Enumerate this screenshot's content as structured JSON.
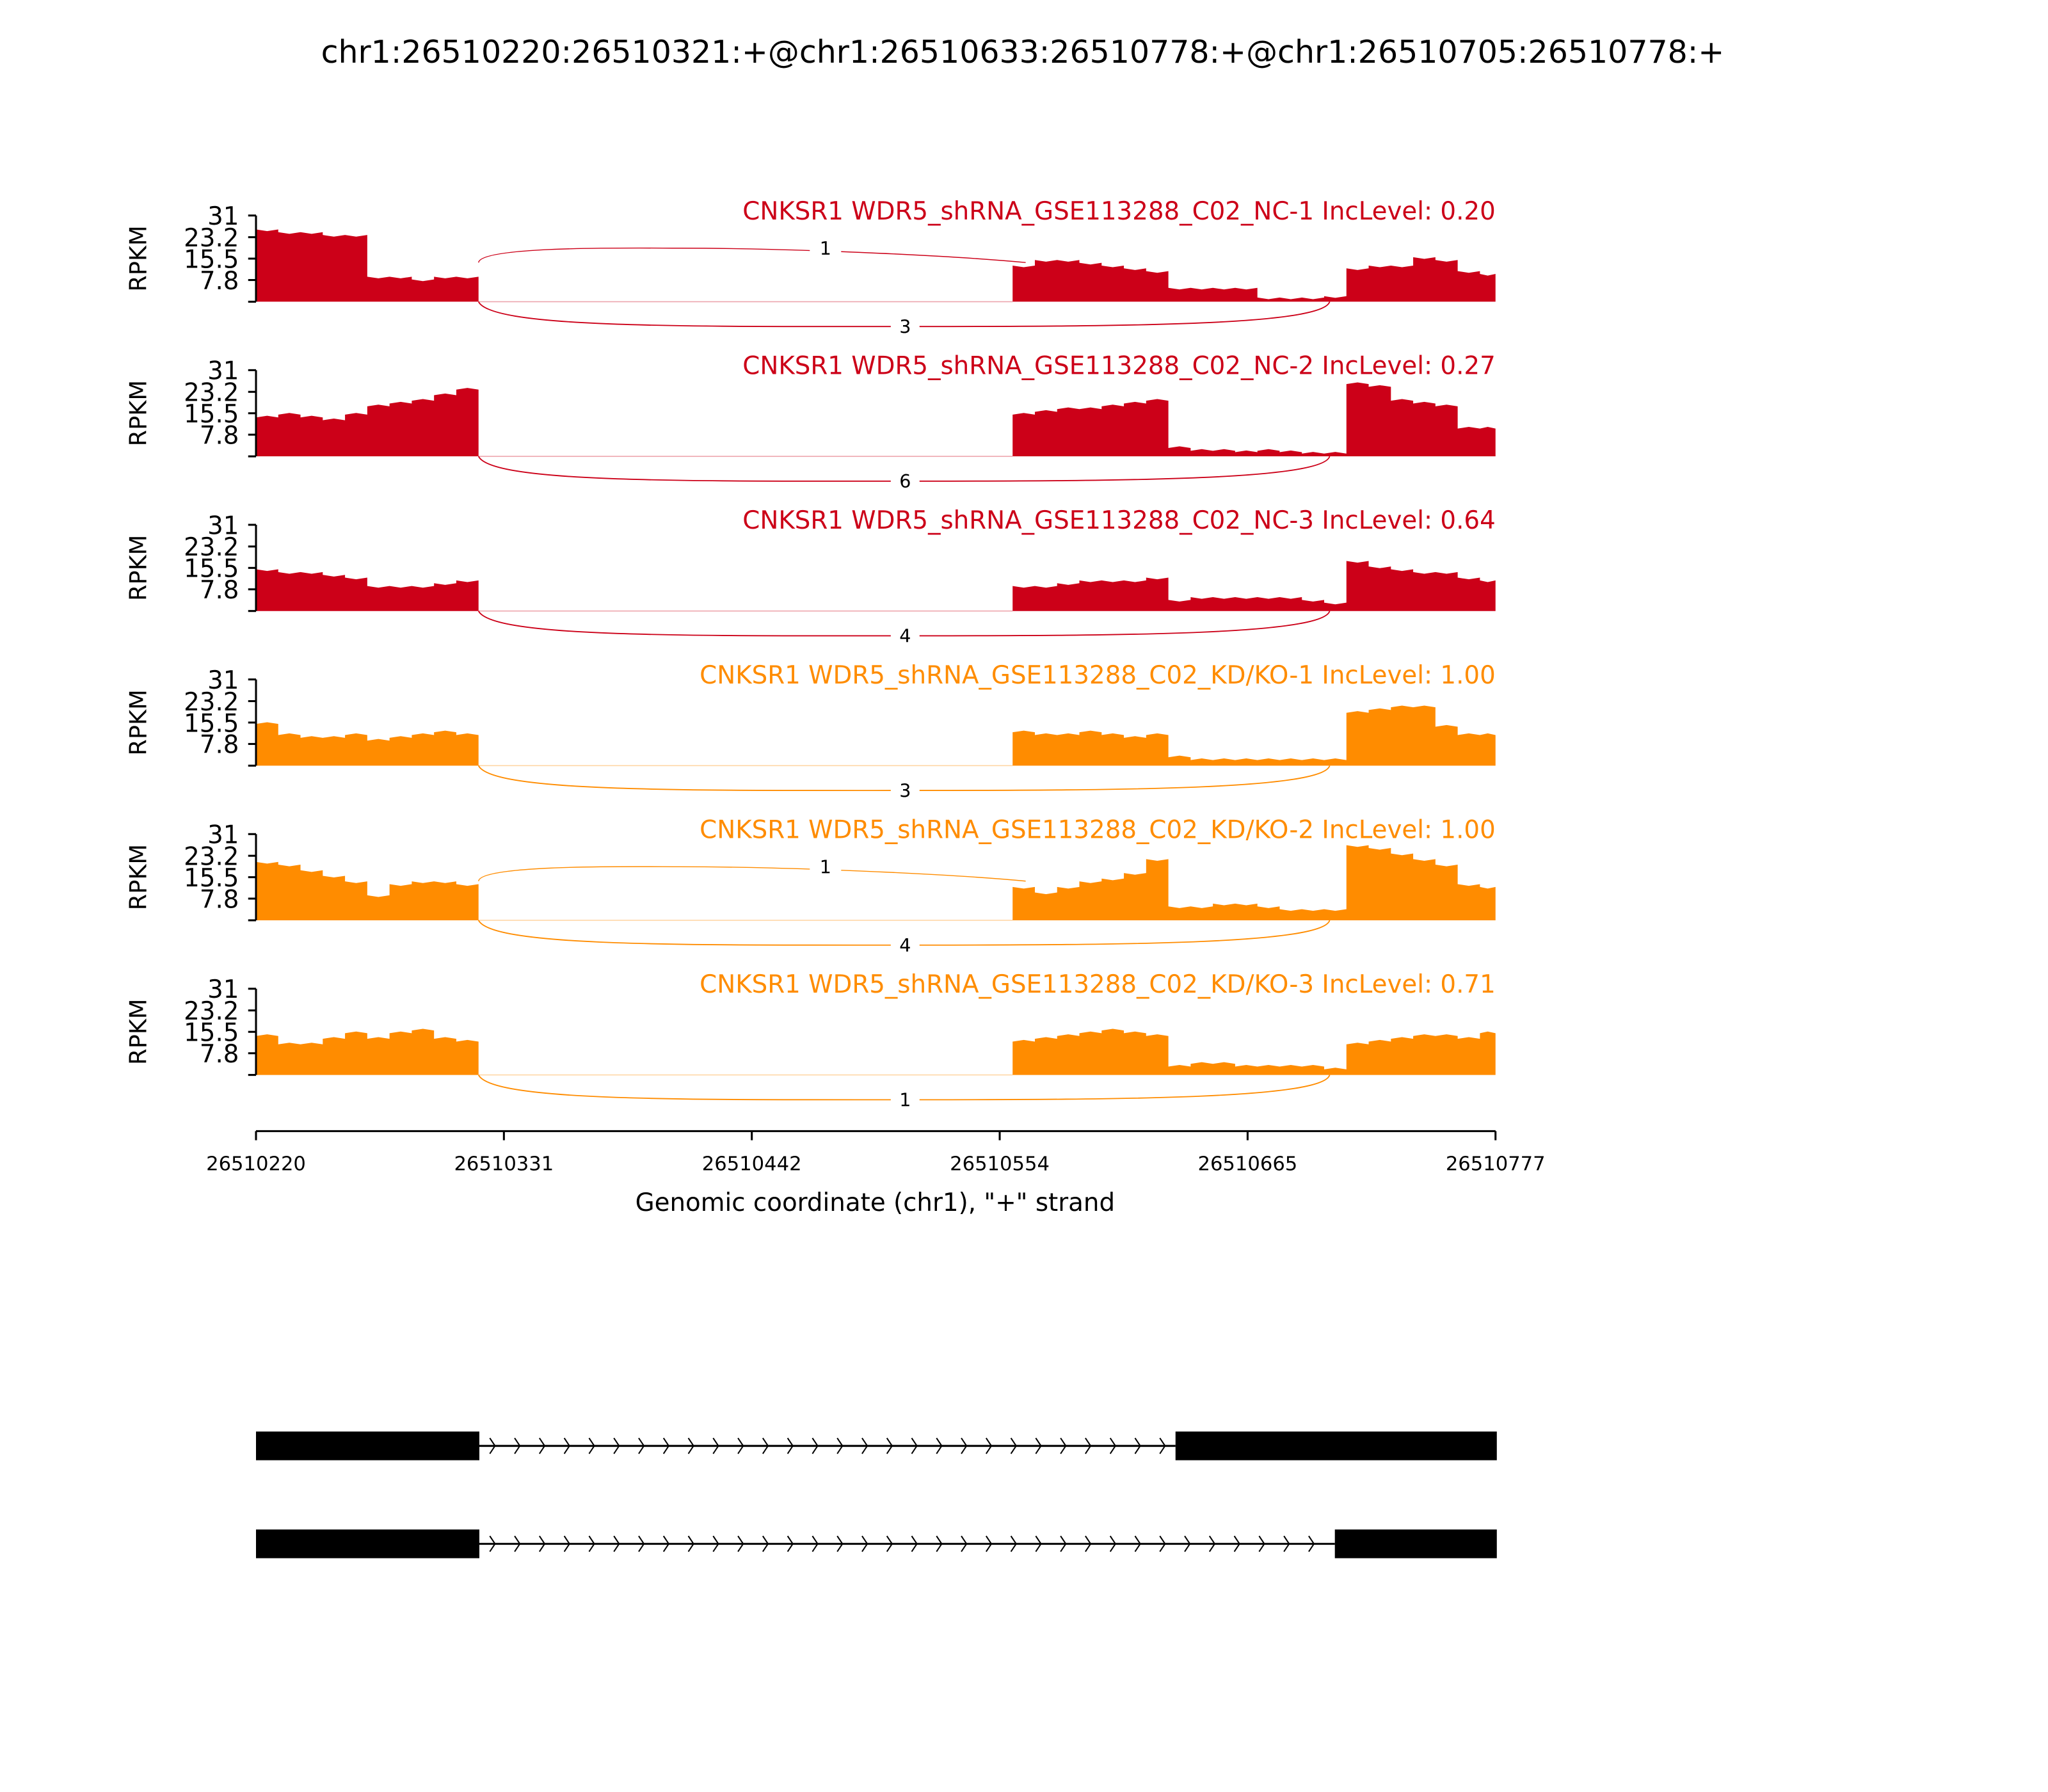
{
  "chart_data": {
    "type": "area",
    "title": "chr1:26510220:26510321:+@chr1:26510633:26510778:+@chr1:26510705:26510778:+",
    "xlabel": "Genomic coordinate (chr1), \"+\" strand",
    "ylabel": "RPKM",
    "xlim": [
      26510220,
      26510777
    ],
    "x_ticks": [
      "26510220",
      "26510331",
      "26510442",
      "26510554",
      "26510665",
      "26510777"
    ],
    "ylim": [
      0,
      31
    ],
    "y_ticks": [
      "31",
      "23.2",
      "15.5",
      "7.8"
    ],
    "colors": {
      "NC": "#CC0018",
      "KD": "#FF8C00"
    },
    "coverage_regions": [
      {
        "start": 26510220,
        "step": 10,
        "end": 26510320
      },
      {
        "start": 26510560,
        "step": 10,
        "end": 26510777
      }
    ],
    "tracks": [
      {
        "label": "CNKSR1 WDR5_shRNA_GSE113288_C02_NC-1 IncLevel: 0.20",
        "group": "NC",
        "coverage": [
          [
            26,
            25,
            25,
            24,
            24,
            9,
            9,
            8,
            9,
            9,
            11
          ],
          [
            13,
            15,
            15,
            14,
            13,
            12,
            11,
            5,
            5,
            5,
            5,
            1.5,
            1.5,
            1.5,
            2,
            12,
            13,
            13,
            16,
            15,
            11,
            10
          ]
        ],
        "junctions": [
          {
            "side": "top",
            "count": "1"
          },
          {
            "side": "bottom",
            "count": "3"
          }
        ]
      },
      {
        "label": "CNKSR1 WDR5_shRNA_GSE113288_C02_NC-2 IncLevel: 0.27",
        "group": "NC",
        "coverage": [
          [
            14,
            15,
            14,
            13,
            15,
            18,
            19,
            20,
            22,
            24,
            17
          ],
          [
            15,
            16,
            17,
            17,
            18,
            19,
            20,
            3,
            2,
            2,
            1.5,
            2,
            1.5,
            1,
            1,
            26,
            25,
            20,
            19,
            18,
            10,
            10
          ]
        ],
        "junctions": [
          {
            "side": "bottom",
            "count": "6"
          }
        ]
      },
      {
        "label": "CNKSR1 WDR5_shRNA_GSE113288_C02_NC-3 IncLevel: 0.64",
        "group": "NC",
        "coverage": [
          [
            15,
            14,
            14,
            13,
            12,
            9,
            9,
            9,
            10,
            11,
            11
          ],
          [
            9,
            9,
            10,
            11,
            11,
            11,
            12,
            4,
            5,
            5,
            5,
            5,
            5,
            4,
            3,
            18,
            16,
            15,
            14,
            14,
            12,
            11
          ]
        ],
        "junctions": [
          {
            "side": "bottom",
            "count": "4"
          }
        ]
      },
      {
        "label": "CNKSR1 WDR5_shRNA_GSE113288_C02_KD/KO-1 IncLevel: 1.00",
        "group": "KD",
        "coverage": [
          [
            15,
            11,
            10,
            10,
            11,
            9,
            10,
            11,
            12,
            11,
            13
          ],
          [
            12,
            11,
            11,
            12,
            11,
            10,
            11,
            3,
            2,
            2,
            2,
            2,
            2,
            2,
            2,
            19,
            20,
            21,
            21,
            14,
            11,
            11
          ]
        ],
        "junctions": [
          {
            "side": "bottom",
            "count": "3"
          }
        ]
      },
      {
        "label": "CNKSR1 WDR5_shRNA_GSE113288_C02_KD/KO-2 IncLevel: 1.00",
        "group": "KD",
        "coverage": [
          [
            21,
            20,
            18,
            16,
            14,
            9,
            13,
            14,
            14,
            13,
            17
          ],
          [
            12,
            10,
            12,
            14,
            15,
            17,
            22,
            5,
            5,
            6,
            6,
            5,
            4,
            4,
            4,
            27,
            26,
            24,
            22,
            20,
            13,
            12
          ]
        ],
        "junctions": [
          {
            "side": "top",
            "count": "1"
          },
          {
            "side": "bottom",
            "count": "4"
          }
        ]
      },
      {
        "label": "CNKSR1 WDR5_shRNA_GSE113288_C02_KD/KO-3 IncLevel: 0.71",
        "group": "KD",
        "coverage": [
          [
            14,
            11,
            11,
            13,
            15,
            13,
            15,
            16,
            13,
            12,
            14
          ],
          [
            12,
            13,
            14,
            15,
            16,
            15,
            14,
            3,
            4,
            4,
            3,
            3,
            3,
            3,
            2,
            11,
            12,
            13,
            14,
            14,
            13,
            15
          ]
        ],
        "junctions": [
          {
            "side": "bottom",
            "count": "1"
          }
        ]
      }
    ],
    "grid": false
  }
}
